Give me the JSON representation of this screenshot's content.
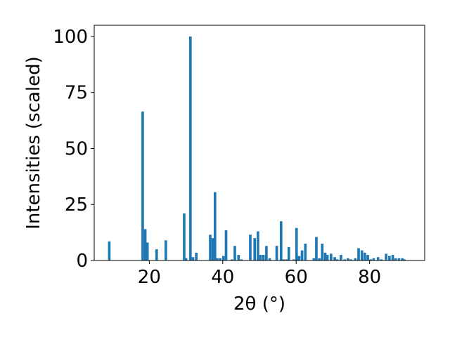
{
  "chart_data": {
    "type": "bar",
    "title": "",
    "xlabel": "2θ (°)",
    "ylabel": "Intensities (scaled)",
    "xlim": [
      5,
      95
    ],
    "ylim": [
      0,
      105
    ],
    "xticks": [
      20,
      40,
      60,
      80
    ],
    "yticks": [
      0,
      25,
      50,
      75,
      100
    ],
    "bar_width": 0.7,
    "color": "#1f77b4",
    "grid": false,
    "x": [
      9.1,
      18.2,
      18.9,
      19.5,
      22.0,
      24.5,
      29.5,
      30.0,
      31.2,
      31.9,
      32.8,
      36.6,
      37.3,
      37.9,
      38.5,
      39.3,
      40.2,
      40.9,
      42.5,
      43.3,
      44.3,
      45.1,
      47.5,
      48.7,
      49.6,
      50.3,
      51.1,
      51.9,
      52.8,
      54.7,
      55.9,
      56.6,
      57.4,
      58.0,
      59.3,
      60.1,
      60.8,
      61.6,
      62.5,
      64.8,
      65.5,
      66.3,
      67.1,
      67.9,
      68.5,
      69.5,
      70.5,
      71.2,
      72.2,
      73.2,
      74.1,
      74.9,
      76.1,
      77.0,
      77.9,
      78.7,
      79.5,
      80.3,
      81.1,
      82.3,
      83.2,
      84.5,
      85.4,
      86.3,
      87.1,
      88.0,
      88.9,
      89.5
    ],
    "values": [
      8.5,
      66.5,
      14.0,
      8.0,
      5.0,
      9.0,
      21.0,
      1.0,
      100.0,
      1.5,
      3.5,
      11.5,
      10.0,
      30.5,
      1.0,
      1.0,
      2.0,
      13.5,
      0.5,
      6.5,
      2.5,
      0.5,
      11.5,
      10.0,
      13.0,
      2.5,
      2.5,
      6.5,
      1.0,
      6.5,
      17.5,
      0.5,
      0.5,
      6.0,
      0.5,
      14.5,
      2.0,
      4.5,
      7.5,
      1.0,
      10.5,
      1.0,
      7.5,
      3.5,
      2.5,
      3.0,
      1.5,
      0.5,
      2.5,
      0.5,
      1.0,
      0.5,
      1.0,
      5.5,
      4.5,
      3.5,
      2.5,
      0.5,
      1.0,
      1.5,
      0.5,
      3.0,
      2.0,
      2.5,
      1.0,
      1.0,
      1.0,
      0.5
    ]
  }
}
